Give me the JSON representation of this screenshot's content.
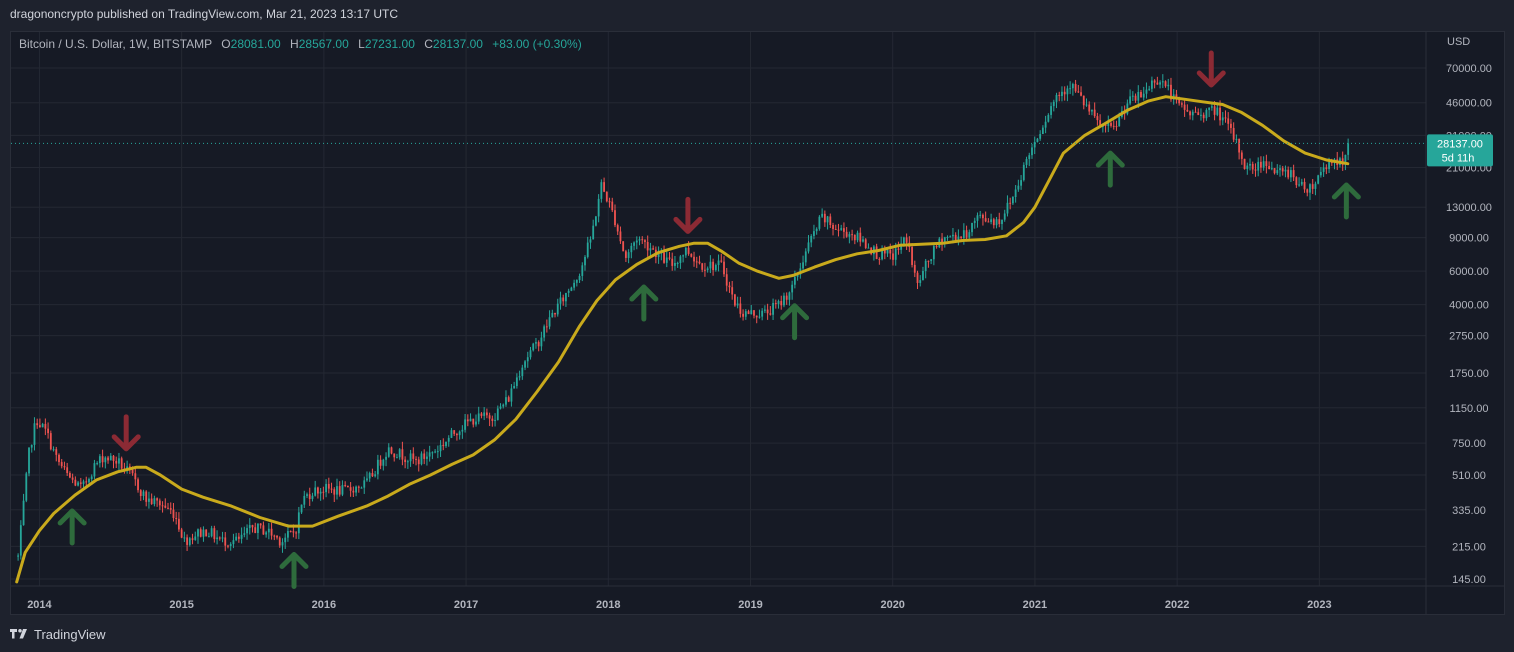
{
  "header": {
    "published_text": "dragononcrypto published on TradingView.com, Mar 21, 2023 13:17 UTC"
  },
  "legend": {
    "symbol": "Bitcoin / U.S. Dollar, 1W, BITSTAMP",
    "o_label": "O",
    "o_value": "28081.00",
    "h_label": "H",
    "h_value": "28567.00",
    "l_label": "L",
    "l_value": "27231.00",
    "c_label": "C",
    "c_value": "28137.00",
    "change": "+83.00 (+0.30%)"
  },
  "footer": {
    "brand": "TradingView"
  },
  "colors": {
    "up": "#26a69a",
    "down": "#ef5350",
    "ma": "#c9aa1c",
    "arrow_up": "#2e6b3c",
    "arrow_down": "#8c2a34"
  },
  "chart_data": {
    "type": "candlestick",
    "scale": "log",
    "currency_label": "USD",
    "y_ticks": [
      "70000.00",
      "46000.00",
      "31000.00",
      "21000.00",
      "13000.00",
      "9000.00",
      "6000.00",
      "4000.00",
      "2750.00",
      "1750.00",
      "1150.00",
      "750.00",
      "510.00",
      "335.00",
      "215.00",
      "145.00"
    ],
    "x_ticks": [
      "2014",
      "2015",
      "2016",
      "2017",
      "2018",
      "2019",
      "2020",
      "2021",
      "2022",
      "2023"
    ],
    "last_price": "28137.00",
    "countdown": "5d 11h",
    "price_path": [
      [
        2013.85,
        190
      ],
      [
        2013.93,
        700
      ],
      [
        2013.98,
        1000
      ],
      [
        2014.05,
        850
      ],
      [
        2014.12,
        620
      ],
      [
        2014.2,
        500
      ],
      [
        2014.3,
        430
      ],
      [
        2014.38,
        560
      ],
      [
        2014.45,
        640
      ],
      [
        2014.55,
        600
      ],
      [
        2014.65,
        500
      ],
      [
        2014.75,
        380
      ],
      [
        2014.85,
        360
      ],
      [
        2014.95,
        320
      ],
      [
        2015.02,
        230
      ],
      [
        2015.1,
        250
      ],
      [
        2015.18,
        260
      ],
      [
        2015.28,
        230
      ],
      [
        2015.4,
        230
      ],
      [
        2015.5,
        270
      ],
      [
        2015.6,
        260
      ],
      [
        2015.7,
        230
      ],
      [
        2015.8,
        260
      ],
      [
        2015.85,
        380
      ],
      [
        2015.92,
        420
      ],
      [
        2016.0,
        430
      ],
      [
        2016.15,
        420
      ],
      [
        2016.3,
        460
      ],
      [
        2016.45,
        700
      ],
      [
        2016.55,
        650
      ],
      [
        2016.65,
        600
      ],
      [
        2016.8,
        700
      ],
      [
        2016.95,
        900
      ],
      [
        2017.05,
        1000
      ],
      [
        2017.2,
        1050
      ],
      [
        2017.3,
        1300
      ],
      [
        2017.4,
        2000
      ],
      [
        2017.5,
        2500
      ],
      [
        2017.6,
        3500
      ],
      [
        2017.7,
        4500
      ],
      [
        2017.8,
        6000
      ],
      [
        2017.88,
        9000
      ],
      [
        2017.95,
        17000
      ],
      [
        2018.0,
        14000
      ],
      [
        2018.05,
        11000
      ],
      [
        2018.12,
        7000
      ],
      [
        2018.2,
        9000
      ],
      [
        2018.3,
        8000
      ],
      [
        2018.38,
        7000
      ],
      [
        2018.45,
        6500
      ],
      [
        2018.55,
        7800
      ],
      [
        2018.65,
        6500
      ],
      [
        2018.8,
        6400
      ],
      [
        2018.88,
        4200
      ],
      [
        2018.95,
        3600
      ],
      [
        2019.1,
        3600
      ],
      [
        2019.2,
        4000
      ],
      [
        2019.3,
        5000
      ],
      [
        2019.4,
        8000
      ],
      [
        2019.5,
        11500
      ],
      [
        2019.6,
        10000
      ],
      [
        2019.7,
        9500
      ],
      [
        2019.8,
        8500
      ],
      [
        2019.9,
        7300
      ],
      [
        2020.0,
        7200
      ],
      [
        2020.1,
        9000
      ],
      [
        2020.17,
        5000
      ],
      [
        2020.25,
        6800
      ],
      [
        2020.35,
        9000
      ],
      [
        2020.5,
        9200
      ],
      [
        2020.6,
        11500
      ],
      [
        2020.75,
        11000
      ],
      [
        2020.85,
        15000
      ],
      [
        2020.95,
        24000
      ],
      [
        2021.05,
        35000
      ],
      [
        2021.15,
        50000
      ],
      [
        2021.25,
        58000
      ],
      [
        2021.35,
        45000
      ],
      [
        2021.45,
        35000
      ],
      [
        2021.55,
        33000
      ],
      [
        2021.65,
        46000
      ],
      [
        2021.75,
        50000
      ],
      [
        2021.85,
        62000
      ],
      [
        2021.92,
        57000
      ],
      [
        2022.0,
        45000
      ],
      [
        2022.1,
        40000
      ],
      [
        2022.2,
        41000
      ],
      [
        2022.28,
        42000
      ],
      [
        2022.35,
        35000
      ],
      [
        2022.42,
        28000
      ],
      [
        2022.48,
        21000
      ],
      [
        2022.55,
        21000
      ],
      [
        2022.62,
        23000
      ],
      [
        2022.7,
        19500
      ],
      [
        2022.8,
        20000
      ],
      [
        2022.87,
        16500
      ],
      [
        2022.95,
        16700
      ],
      [
        2023.03,
        21000
      ],
      [
        2023.1,
        23500
      ],
      [
        2023.17,
        21500
      ],
      [
        2023.22,
        28137
      ]
    ],
    "moving_average": [
      [
        2013.84,
        140
      ],
      [
        2013.9,
        200
      ],
      [
        2014.0,
        260
      ],
      [
        2014.1,
        320
      ],
      [
        2014.25,
        400
      ],
      [
        2014.4,
        480
      ],
      [
        2014.55,
        530
      ],
      [
        2014.68,
        560
      ],
      [
        2014.75,
        560
      ],
      [
        2014.85,
        510
      ],
      [
        2015.0,
        430
      ],
      [
        2015.15,
        390
      ],
      [
        2015.35,
        350
      ],
      [
        2015.55,
        305
      ],
      [
        2015.75,
        275
      ],
      [
        2015.92,
        275
      ],
      [
        2016.1,
        310
      ],
      [
        2016.3,
        350
      ],
      [
        2016.45,
        395
      ],
      [
        2016.6,
        455
      ],
      [
        2016.75,
        510
      ],
      [
        2016.9,
        580
      ],
      [
        2017.05,
        650
      ],
      [
        2017.2,
        780
      ],
      [
        2017.35,
        1000
      ],
      [
        2017.5,
        1400
      ],
      [
        2017.65,
        2000
      ],
      [
        2017.8,
        3100
      ],
      [
        2017.92,
        4200
      ],
      [
        2018.05,
        5400
      ],
      [
        2018.2,
        6500
      ],
      [
        2018.35,
        7500
      ],
      [
        2018.5,
        8100
      ],
      [
        2018.6,
        8400
      ],
      [
        2018.7,
        8400
      ],
      [
        2018.8,
        7600
      ],
      [
        2018.92,
        6600
      ],
      [
        2019.05,
        6000
      ],
      [
        2019.2,
        5500
      ],
      [
        2019.3,
        5700
      ],
      [
        2019.45,
        6300
      ],
      [
        2019.6,
        6900
      ],
      [
        2019.75,
        7400
      ],
      [
        2019.9,
        7700
      ],
      [
        2020.05,
        8200
      ],
      [
        2020.2,
        8300
      ],
      [
        2020.35,
        8400
      ],
      [
        2020.5,
        8700
      ],
      [
        2020.65,
        8800
      ],
      [
        2020.8,
        9200
      ],
      [
        2020.92,
        10800
      ],
      [
        2021.0,
        13000
      ],
      [
        2021.1,
        18000
      ],
      [
        2021.2,
        25000
      ],
      [
        2021.35,
        31000
      ],
      [
        2021.5,
        36000
      ],
      [
        2021.65,
        42000
      ],
      [
        2021.8,
        47000
      ],
      [
        2021.92,
        49500
      ],
      [
        2022.05,
        48000
      ],
      [
        2022.18,
        46500
      ],
      [
        2022.32,
        45000
      ],
      [
        2022.45,
        41000
      ],
      [
        2022.6,
        35000
      ],
      [
        2022.75,
        29000
      ],
      [
        2022.9,
        25000
      ],
      [
        2023.05,
        23000
      ],
      [
        2023.2,
        22000
      ]
    ],
    "arrows_up": [
      [
        2014.23,
        330
      ],
      [
        2015.79,
        195
      ],
      [
        2018.25,
        4950
      ],
      [
        2019.31,
        3950
      ],
      [
        2021.53,
        25000
      ],
      [
        2023.19,
        17000
      ]
    ],
    "arrows_down": [
      [
        2014.61,
        700
      ],
      [
        2018.56,
        9700
      ],
      [
        2022.24,
        57000
      ]
    ]
  }
}
